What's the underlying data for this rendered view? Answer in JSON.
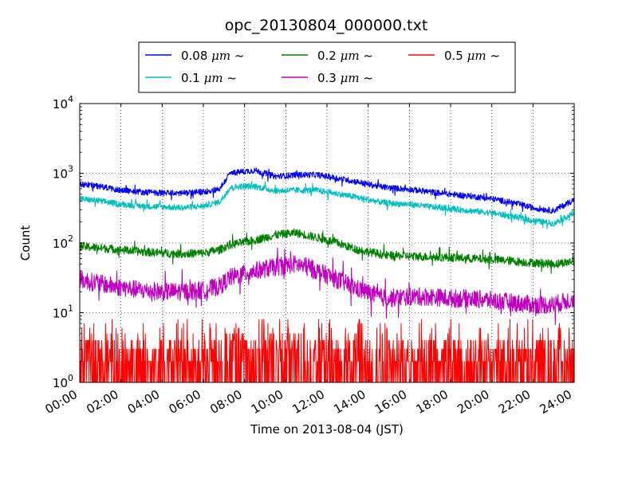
{
  "chart_data": {
    "type": "line",
    "title": "opc_20130804_000000.txt",
    "xlabel": "Time on 2013-08-04 (JST)",
    "ylabel": "Count",
    "x_range_hours": [
      0,
      24
    ],
    "x_tick_labels": [
      "00:00",
      "02:00",
      "04:00",
      "06:00",
      "08:00",
      "10:00",
      "12:00",
      "14:00",
      "16:00",
      "18:00",
      "20:00",
      "22:00",
      "24:00"
    ],
    "y_scale": "log",
    "ylim": [
      1,
      10000
    ],
    "y_tick_labels": [
      {
        "base": "10",
        "exp": "0"
      },
      {
        "base": "10",
        "exp": "1"
      },
      {
        "base": "10",
        "exp": "2"
      },
      {
        "base": "10",
        "exp": "3"
      },
      {
        "base": "10",
        "exp": "4"
      }
    ],
    "grid": true,
    "legend_position": "top-center (above plot)",
    "hours": [
      0,
      1,
      2,
      3,
      4,
      5,
      6,
      6.8,
      7.3,
      7.8,
      8.5,
      9.5,
      10.5,
      11.5,
      12.5,
      13.5,
      14.5,
      15,
      16,
      17,
      18,
      19,
      20,
      21,
      22,
      23,
      24
    ],
    "series": [
      {
        "name": "0.08 μm ~",
        "label_prefix": "0.08 ",
        "label_unit": "μm",
        "label_suffix": " ~",
        "color": "#0000ff",
        "noise": 0.1,
        "values": [
          700,
          650,
          570,
          540,
          520,
          520,
          540,
          600,
          1000,
          1050,
          1100,
          900,
          950,
          950,
          850,
          750,
          650,
          620,
          590,
          540,
          500,
          470,
          430,
          380,
          320,
          290,
          420
        ]
      },
      {
        "name": "0.1 μm ~",
        "label_prefix": "0.1 ",
        "label_unit": "μm",
        "label_suffix": " ~",
        "color": "#00bfbf",
        "noise": 0.1,
        "values": [
          430,
          400,
          360,
          340,
          330,
          320,
          340,
          390,
          620,
          650,
          650,
          560,
          570,
          570,
          510,
          450,
          390,
          370,
          360,
          330,
          310,
          290,
          270,
          240,
          210,
          190,
          270
        ]
      },
      {
        "name": "0.2 μm ~",
        "label_prefix": "0.2 ",
        "label_unit": "μm",
        "label_suffix": " ~",
        "color": "#008000",
        "noise": 0.14,
        "values": [
          90,
          85,
          80,
          75,
          72,
          70,
          72,
          80,
          95,
          100,
          110,
          130,
          140,
          120,
          100,
          80,
          70,
          66,
          65,
          63,
          62,
          60,
          58,
          55,
          52,
          50,
          55
        ]
      },
      {
        "name": "0.3 μm ~",
        "label_prefix": "0.3 ",
        "label_unit": "μm",
        "label_suffix": " ~",
        "color": "#bf00bf",
        "noise": 0.3,
        "values": [
          30,
          26,
          23,
          21,
          20,
          20,
          21,
          24,
          32,
          35,
          40,
          45,
          50,
          40,
          30,
          22,
          17,
          16,
          17,
          17,
          16,
          16,
          15,
          14,
          13,
          13,
          16
        ]
      },
      {
        "name": "0.5 μm ~",
        "label_prefix": "0.5 ",
        "label_unit": "μm",
        "label_suffix": " ~",
        "color": "#ff0000",
        "noise": 0,
        "values": [
          2,
          2,
          2,
          2,
          2,
          2,
          2,
          2,
          3,
          3,
          3,
          3,
          3,
          2,
          2,
          2,
          2,
          2,
          2,
          2,
          2,
          2,
          2,
          2,
          2,
          2,
          2
        ]
      }
    ]
  }
}
